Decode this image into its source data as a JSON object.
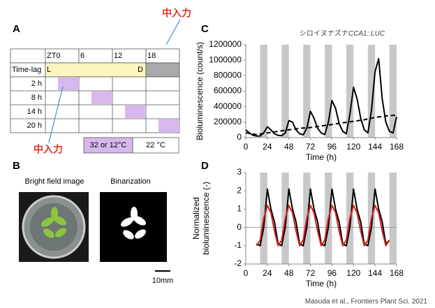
{
  "panel_a": {
    "label": "A",
    "header": [
      "ZT0",
      "6",
      "12",
      "18"
    ],
    "timelag": "Time-lag",
    "light": "L",
    "dark": "D",
    "rows": [
      "2 h",
      "8 h",
      "14 h",
      "20 h"
    ],
    "legend": [
      "32 or 12°C",
      "22 °C"
    ],
    "annotations": [
      "中入力",
      "中入力"
    ]
  },
  "panel_b": {
    "label": "B",
    "left_title": "Bright field image",
    "right_title": "Binarization",
    "scale": "10mm"
  },
  "credit": "Masuda et al., Frontiers Plant Sci. 2021",
  "chart_data": [
    {
      "type": "line",
      "panel": "C",
      "title": "シロイヌナズナ",
      "title_italic": "CCA1::LUC",
      "xlabel": "Time (h)",
      "ylabel": "Bioluminescence (count/s)",
      "xlim": [
        0,
        168
      ],
      "xticks": [
        0,
        24,
        48,
        72,
        96,
        120,
        144,
        168
      ],
      "ylim": [
        0,
        1200000
      ],
      "yticks": [
        0,
        200000,
        400000,
        600000,
        800000,
        1000000,
        1200000
      ],
      "shade": [
        [
          16,
          24
        ],
        [
          40,
          48
        ],
        [
          64,
          72
        ],
        [
          88,
          96
        ],
        [
          112,
          120
        ],
        [
          136,
          144
        ],
        [
          160,
          168
        ]
      ],
      "series": [
        {
          "color": "#000000",
          "dash": false,
          "x": [
            0,
            4,
            8,
            12,
            16,
            20,
            24,
            28,
            32,
            36,
            40,
            44,
            48,
            52,
            56,
            60,
            64,
            68,
            72,
            76,
            80,
            84,
            88,
            92,
            96,
            100,
            104,
            108,
            112,
            116,
            120,
            124,
            128,
            132,
            136,
            140,
            144,
            148,
            152,
            156,
            160,
            164,
            168
          ],
          "values": [
            100000,
            60000,
            30000,
            20000,
            20000,
            60000,
            140000,
            100000,
            50000,
            30000,
            25000,
            60000,
            220000,
            200000,
            100000,
            50000,
            35000,
            120000,
            340000,
            250000,
            120000,
            60000,
            40000,
            200000,
            480000,
            380000,
            180000,
            80000,
            50000,
            300000,
            650000,
            500000,
            250000,
            100000,
            60000,
            350000,
            850000,
            1020000,
            500000,
            200000,
            80000,
            60000,
            270000
          ]
        },
        {
          "color": "#000000",
          "dash": true,
          "x": [
            0,
            12,
            24,
            36,
            48,
            60,
            72,
            84,
            96,
            108,
            120,
            132,
            144,
            156,
            168
          ],
          "values": [
            60000,
            40000,
            60000,
            80000,
            100000,
            120000,
            130000,
            150000,
            170000,
            190000,
            210000,
            230000,
            260000,
            280000,
            290000
          ]
        }
      ]
    },
    {
      "type": "line",
      "panel": "D",
      "xlabel": "Time (h)",
      "ylabel": [
        "Normalized",
        "bioluminescence (-)"
      ],
      "xlim": [
        0,
        168
      ],
      "xticks": [
        0,
        24,
        48,
        72,
        96,
        120,
        144,
        168
      ],
      "ylim": [
        -2,
        3
      ],
      "yticks": [
        -2,
        -1,
        0,
        1,
        2,
        3
      ],
      "hline": 0,
      "shade": [
        [
          16,
          24
        ],
        [
          40,
          48
        ],
        [
          64,
          72
        ],
        [
          88,
          96
        ],
        [
          112,
          120
        ],
        [
          136,
          144
        ],
        [
          160,
          168
        ]
      ],
      "series": [
        {
          "color": "#000000",
          "dash": false,
          "x": [
            12,
            16,
            20,
            24,
            28,
            32,
            36,
            40,
            44,
            48,
            52,
            56,
            60,
            64,
            68,
            72,
            76,
            80,
            84,
            88,
            92,
            96,
            100,
            104,
            108,
            112,
            116,
            120,
            124,
            128,
            132,
            136,
            140,
            144,
            148,
            152,
            156,
            160
          ],
          "values": [
            -0.9,
            -1,
            0,
            2.1,
            1,
            0.3,
            -0.9,
            -1,
            0,
            2.1,
            1,
            0.3,
            -0.9,
            -1,
            0,
            2.1,
            1,
            0.3,
            -0.9,
            -1,
            0,
            2.1,
            1,
            0.3,
            -0.9,
            -1,
            0,
            2.1,
            1,
            0.3,
            -0.9,
            -1,
            0,
            2.1,
            1,
            0.3,
            -0.9,
            -0.7
          ]
        },
        {
          "color": "#d42020",
          "dash": false,
          "x": [
            12,
            16,
            20,
            24,
            28,
            32,
            36,
            40,
            44,
            48,
            52,
            56,
            60,
            64,
            68,
            72,
            76,
            80,
            84,
            88,
            92,
            96,
            100,
            104,
            108,
            112,
            116,
            120,
            124,
            128,
            132,
            136,
            140,
            144,
            148,
            152,
            156,
            160
          ],
          "values": [
            -1,
            -0.7,
            0.5,
            1.2,
            0.8,
            -0.2,
            -1,
            -0.7,
            0.5,
            1.2,
            0.8,
            -0.2,
            -1,
            -0.7,
            0.5,
            1.2,
            0.8,
            -0.2,
            -1,
            -0.7,
            0.5,
            1.2,
            0.8,
            -0.2,
            -1,
            -0.7,
            0.5,
            1.2,
            0.8,
            -0.2,
            -1,
            -0.7,
            0.5,
            1.2,
            0.8,
            -0.2,
            -1,
            -0.7
          ]
        }
      ]
    }
  ]
}
